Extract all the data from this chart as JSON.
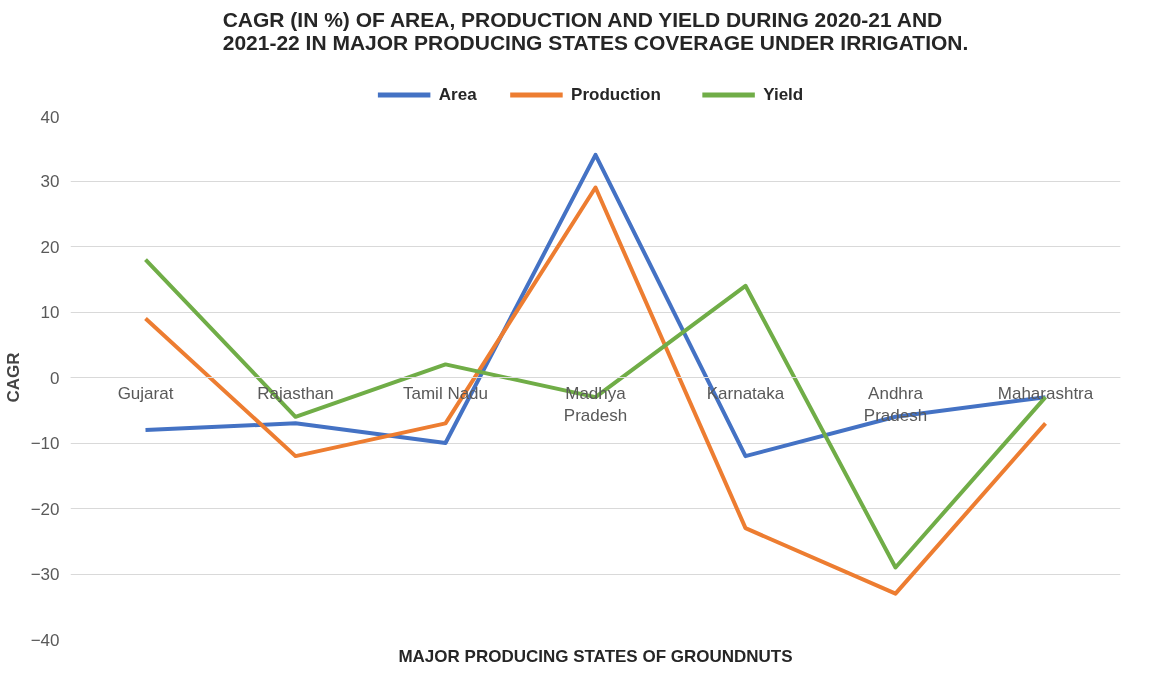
{
  "chart_data": {
    "type": "line",
    "title": "CAGR (IN %) OF AREA, PRODUCTION AND YIELD DURING 2020-21 AND 2021-22 IN MAJOR PRODUCING STATES COVERAGE UNDER IRRIGATION.",
    "xlabel": "MAJOR PRODUCING STATES OF GROUNDNUTS",
    "ylabel": "CAGR",
    "categories": [
      "Gujarat",
      "Rajasthan",
      "Tamil Nadu",
      "Madhya Pradesh",
      "Karnataka",
      "Andhra Pradesh",
      "Maharashtra"
    ],
    "series": [
      {
        "name": "Area",
        "color": "#4472c4",
        "values": [
          -8,
          -7,
          -10,
          34,
          -12,
          -6,
          -3
        ]
      },
      {
        "name": "Production",
        "color": "#ed7d31",
        "values": [
          9,
          -12,
          -7,
          29,
          -23,
          -33,
          -7
        ]
      },
      {
        "name": "Yield",
        "color": "#70ad47",
        "values": [
          18,
          -6,
          2,
          -3,
          14,
          -29,
          -3
        ]
      }
    ],
    "ylim": [
      -40,
      40
    ],
    "yticks": [
      -40,
      -30,
      -20,
      -10,
      0,
      10,
      20,
      30,
      40
    ],
    "grid": "y",
    "legend": "top",
    "marker": "none",
    "line_style": "solid"
  }
}
